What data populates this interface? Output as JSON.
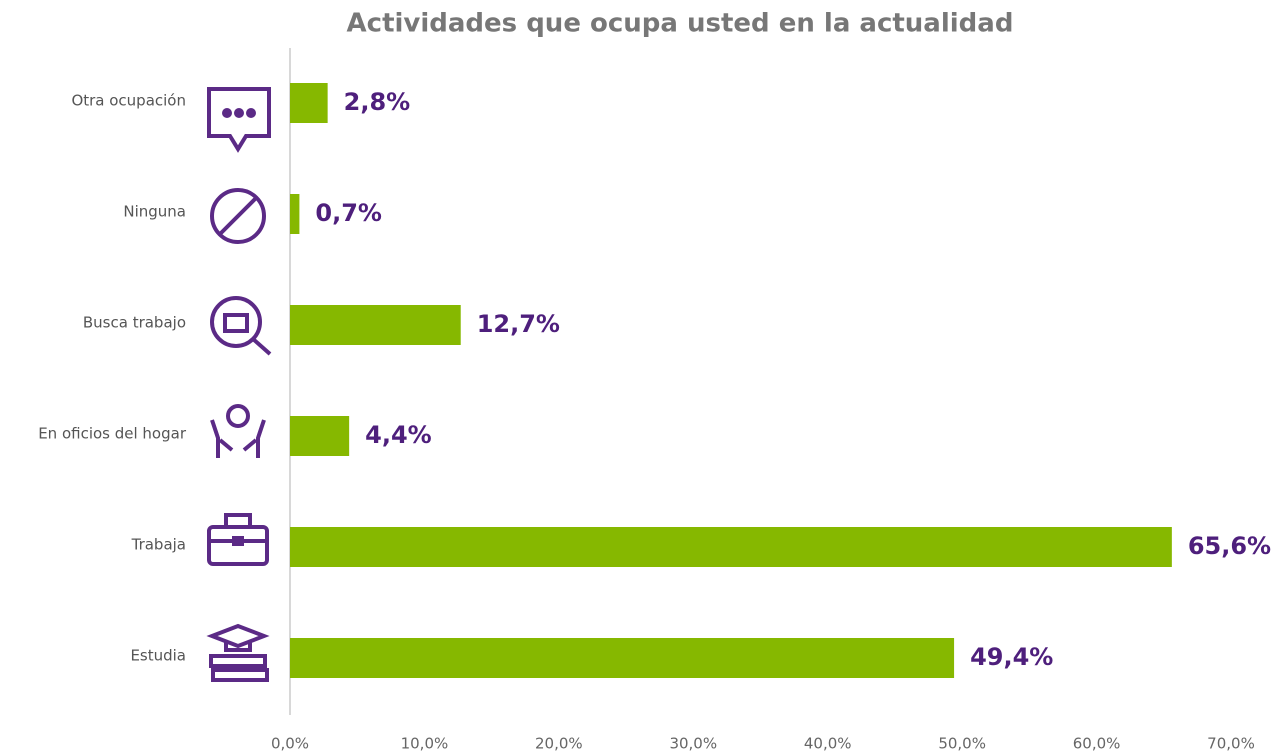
{
  "chart_data": {
    "type": "hbar",
    "title": "Actividades que ocupa usted en la actualidad",
    "categories": [
      "Otra ocupación",
      "Ninguna",
      "Busca trabajo",
      "En oficios del hogar",
      "Trabaja",
      "Estudia"
    ],
    "values": [
      2.8,
      0.7,
      12.7,
      4.4,
      65.6,
      49.4
    ],
    "value_labels": [
      "2,8%",
      "0,7%",
      "12,7%",
      "4,4%",
      "65,6%",
      "49,4%"
    ],
    "color": "#86b800",
    "xlim": [
      0,
      70
    ],
    "xticks": [
      {
        "value": 0,
        "label": "0,0%"
      },
      {
        "value": 10,
        "label": "10,0%"
      },
      {
        "value": 20,
        "label": "20,0%"
      },
      {
        "value": 30,
        "label": "30,0%"
      },
      {
        "value": 40,
        "label": "40,0%"
      },
      {
        "value": 50,
        "label": "50,0%"
      },
      {
        "value": 60,
        "label": "60,0%"
      },
      {
        "value": 70,
        "label": "70,0%"
      }
    ],
    "grid": false
  }
}
